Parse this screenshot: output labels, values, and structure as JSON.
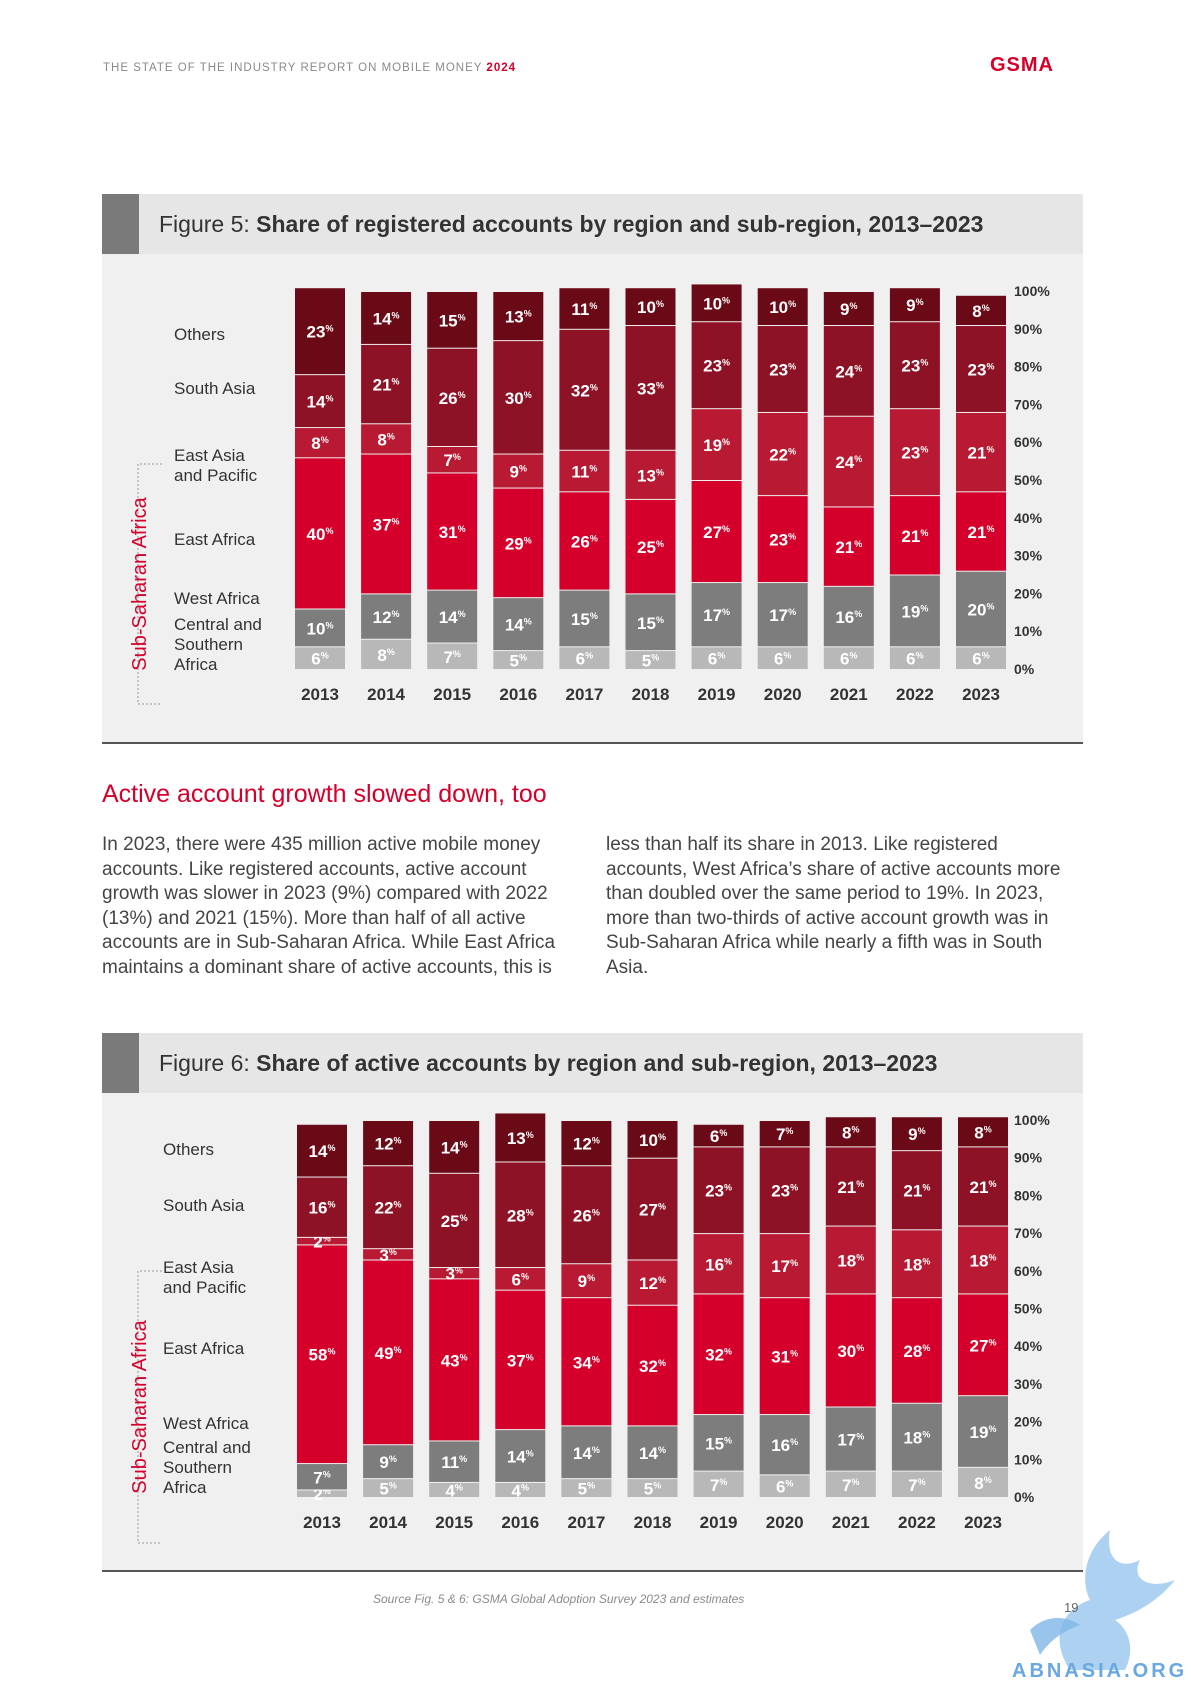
{
  "header": {
    "report_title": "THE STATE OF THE INDUSTRY REPORT ON MOBILE MONEY",
    "report_year": "2024",
    "brand": "GSMA"
  },
  "figure5": {
    "title_prefix": "Figure 5: ",
    "title_bold": "Share of registered accounts by region and sub-region, 2013–2023"
  },
  "figure6": {
    "title_prefix": "Figure 6: ",
    "title_bold": "Share of active accounts by region and sub-region, 2013–2023"
  },
  "section": {
    "heading": "Active account growth slowed down, too",
    "col1": "In 2023, there were 435 million active mobile money accounts. Like registered accounts, active account growth was slower in 2023 (9%) compared with 2022 (13%) and 2021 (15%). More than half of all active accounts are in Sub-Saharan Africa. While East Africa maintains a dominant share of active accounts, this is",
    "col2": "less than half its share in 2013. Like registered accounts, West Africa’s share of active accounts more than doubled over the same period to 19%. In 2023, more than two-thirds of active account growth was in Sub-Saharan Africa while nearly a fifth was in South Asia."
  },
  "footer": {
    "source": "Source Fig. 5 & 6: GSMA Global Adoption Survey 2023 and estimates",
    "page": "19",
    "watermark": "ABNASIA.ORG"
  },
  "colors": {
    "Others": "#6b0a17",
    "South Asia": "#8e1226",
    "East Asia and Pacific": "#b81a33",
    "East Africa": "#d4002b",
    "West Africa": "#7d7d7d",
    "Central and Southern Africa": "#b8b8b8",
    "accent": "#d4002b"
  },
  "chart_data": [
    {
      "type": "bar",
      "stacked": true,
      "group_label": "Sub-Saharan Africa",
      "categories": [
        "2013",
        "2014",
        "2015",
        "2016",
        "2017",
        "2018",
        "2019",
        "2020",
        "2021",
        "2022",
        "2023"
      ],
      "y_ticks": [
        "0%",
        "10%",
        "20%",
        "30%",
        "40%",
        "50%",
        "60%",
        "70%",
        "80%",
        "90%",
        "100%"
      ],
      "ylim": [
        0,
        100
      ],
      "series": [
        {
          "name": "Central and Southern Africa",
          "values": [
            6,
            8,
            7,
            5,
            6,
            5,
            6,
            6,
            6,
            6,
            6
          ]
        },
        {
          "name": "West Africa",
          "values": [
            10,
            12,
            14,
            14,
            15,
            15,
            17,
            17,
            16,
            19,
            20
          ]
        },
        {
          "name": "East Africa",
          "values": [
            40,
            37,
            31,
            29,
            26,
            25,
            27,
            23,
            21,
            21,
            21
          ]
        },
        {
          "name": "East Asia and Pacific",
          "values": [
            8,
            8,
            7,
            9,
            11,
            13,
            19,
            22,
            24,
            23,
            21
          ]
        },
        {
          "name": "South Asia",
          "values": [
            14,
            21,
            26,
            30,
            32,
            33,
            23,
            23,
            24,
            23,
            23
          ]
        },
        {
          "name": "Others",
          "values": [
            23,
            14,
            15,
            13,
            11,
            10,
            10,
            10,
            9,
            9,
            8
          ]
        }
      ]
    },
    {
      "type": "bar",
      "stacked": true,
      "group_label": "Sub-Saharan Africa",
      "categories": [
        "2013",
        "2014",
        "2015",
        "2016",
        "2017",
        "2018",
        "2019",
        "2020",
        "2021",
        "2022",
        "2023"
      ],
      "y_ticks": [
        "0%",
        "10%",
        "20%",
        "30%",
        "40%",
        "50%",
        "60%",
        "70%",
        "80%",
        "90%",
        "100%"
      ],
      "ylim": [
        0,
        100
      ],
      "series": [
        {
          "name": "Central and Southern Africa",
          "values": [
            2,
            5,
            4,
            4,
            5,
            5,
            7,
            6,
            7,
            7,
            8
          ]
        },
        {
          "name": "West Africa",
          "values": [
            7,
            9,
            11,
            14,
            14,
            14,
            15,
            16,
            17,
            18,
            19
          ]
        },
        {
          "name": "East Africa",
          "values": [
            58,
            49,
            43,
            37,
            34,
            32,
            32,
            31,
            30,
            28,
            27
          ]
        },
        {
          "name": "East Asia and Pacific",
          "values": [
            2,
            3,
            3,
            6,
            9,
            12,
            16,
            17,
            18,
            18,
            18
          ]
        },
        {
          "name": "South Asia",
          "values": [
            16,
            22,
            25,
            28,
            26,
            27,
            23,
            23,
            21,
            21,
            21
          ]
        },
        {
          "name": "Others",
          "values": [
            14,
            12,
            14,
            13,
            12,
            10,
            6,
            7,
            8,
            9,
            8
          ]
        }
      ]
    }
  ]
}
